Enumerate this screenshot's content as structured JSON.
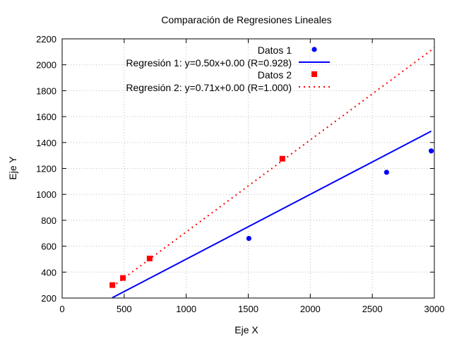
{
  "chart_data": {
    "type": "scatter",
    "title": "Comparación de Regresiones Lineales",
    "xlabel": "Eje X",
    "ylabel": "Eje Y",
    "xlim": [
      0,
      3000
    ],
    "ylim": [
      200,
      2200
    ],
    "xticks": [
      0,
      500,
      1000,
      1500,
      2000,
      2500,
      3000
    ],
    "yticks": [
      200,
      400,
      600,
      800,
      1000,
      1200,
      1400,
      1600,
      1800,
      2000,
      2200
    ],
    "grid": true,
    "legend_position": "top-right",
    "series": [
      {
        "name": "Datos 1",
        "kind": "points",
        "marker": "circle",
        "color": "#0000ff",
        "points": [
          [
            1505,
            660
          ],
          [
            2615,
            1170
          ],
          [
            2975,
            1335
          ]
        ]
      },
      {
        "name": "Regresión 1: y=0.50x+0.00 (R=0.928)",
        "kind": "line",
        "style": "solid",
        "color": "#0000ff",
        "slope": 0.5,
        "intercept": 0.0,
        "x_range": [
          405,
          2975
        ]
      },
      {
        "name": "Datos 2",
        "kind": "points",
        "marker": "square",
        "color": "#ff0000",
        "points": [
          [
            405,
            300
          ],
          [
            490,
            355
          ],
          [
            705,
            505
          ],
          [
            1775,
            1275
          ]
        ]
      },
      {
        "name": "Regresión 2: y=0.71x+0.00 (R=1.000)",
        "kind": "line",
        "style": "dotted",
        "color": "#ff0000",
        "slope": 0.71,
        "intercept": 0.0,
        "x_range": [
          405,
          3000
        ]
      }
    ]
  }
}
